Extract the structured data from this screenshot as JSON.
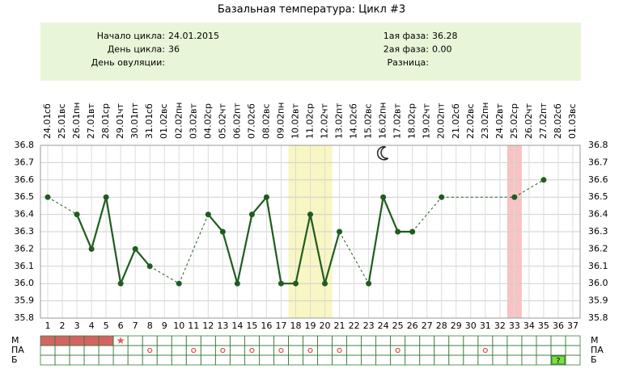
{
  "chart_data": {
    "type": "line",
    "title": "Базальная температура: Цикл #3",
    "info": {
      "left": [
        {
          "label": "Начало цикла:",
          "value": "24.01.2015"
        },
        {
          "label": "День цикла:",
          "value": "36"
        },
        {
          "label": "День овуляции:"
        }
      ],
      "right": [
        {
          "label": "1ая фаза:",
          "value": "36.28"
        },
        {
          "label": "2ая фаза:",
          "value": "0.00"
        },
        {
          "label": "Разница:"
        }
      ]
    },
    "categories": [
      1,
      2,
      3,
      4,
      5,
      6,
      7,
      8,
      9,
      10,
      11,
      12,
      13,
      14,
      15,
      16,
      17,
      18,
      19,
      20,
      21,
      22,
      23,
      24,
      25,
      26,
      27,
      28,
      29,
      30,
      31,
      32,
      33,
      34,
      35,
      36,
      37
    ],
    "weekdays": [
      "сб",
      "вс",
      "пн",
      "вт",
      "ср",
      "чт",
      "пт",
      "сб",
      "вс",
      "пн",
      "вт",
      "ср",
      "чт",
      "пт",
      "сб",
      "вс",
      "пн",
      "вт",
      "ср",
      "чт",
      "пт",
      "сб",
      "вс",
      "пн",
      "вт",
      "ср",
      "чт",
      "пт",
      "сб",
      "вс",
      "пн",
      "вт",
      "ср",
      "чт",
      "пт",
      "сб",
      "вс"
    ],
    "dates": [
      "24.01",
      "25.01",
      "26.01",
      "27.01",
      "28.01",
      "29.01",
      "30.01",
      "31.01",
      "01.02",
      "02.02",
      "03.02",
      "04.02",
      "05.02",
      "06.02",
      "07.02",
      "08.02",
      "09.02",
      "10.02",
      "11.02",
      "12.02",
      "13.02",
      "14.02",
      "15.02",
      "16.02",
      "17.02",
      "18.02",
      "19.02",
      "20.02",
      "21.02",
      "22.02",
      "23.02",
      "24.02",
      "25.02",
      "26.02",
      "27.02",
      "28.02",
      "01.03"
    ],
    "series": [
      {
        "name": "Температура",
        "color": "#1f5c1f",
        "values": [
          36.5,
          null,
          36.4,
          36.2,
          36.5,
          36.0,
          36.2,
          36.1,
          null,
          36.0,
          null,
          36.4,
          36.3,
          36.0,
          36.4,
          36.5,
          36.0,
          36.0,
          36.4,
          36.0,
          36.3,
          null,
          36.0,
          36.5,
          36.3,
          36.3,
          null,
          36.5,
          null,
          null,
          null,
          null,
          36.5,
          null,
          36.6,
          null,
          null
        ]
      }
    ],
    "ylim": [
      35.8,
      36.8
    ],
    "yticks": [
      35.8,
      35.9,
      {
        "value": 36,
        "label": "36.0"
      },
      36.1,
      36.2,
      36.3,
      36.4,
      36.5,
      36.6,
      36.7,
      36.8
    ],
    "grid": true,
    "bands": [
      {
        "from": 18,
        "to": 20,
        "color": "#f8f6c2"
      },
      {
        "from": 33,
        "to": 33,
        "color": "#f7c3c3"
      }
    ],
    "moon_day": 24,
    "rows": [
      {
        "label": "М",
        "fill_days": [
          1,
          2,
          3,
          4,
          5
        ],
        "star_days": [
          6
        ]
      },
      {
        "label": "ПА",
        "circle_days": [
          8,
          11,
          13,
          15,
          17,
          19,
          21,
          25,
          31
        ]
      },
      {
        "label": "Б",
        "note_days": [
          36
        ],
        "note": "?"
      }
    ]
  }
}
